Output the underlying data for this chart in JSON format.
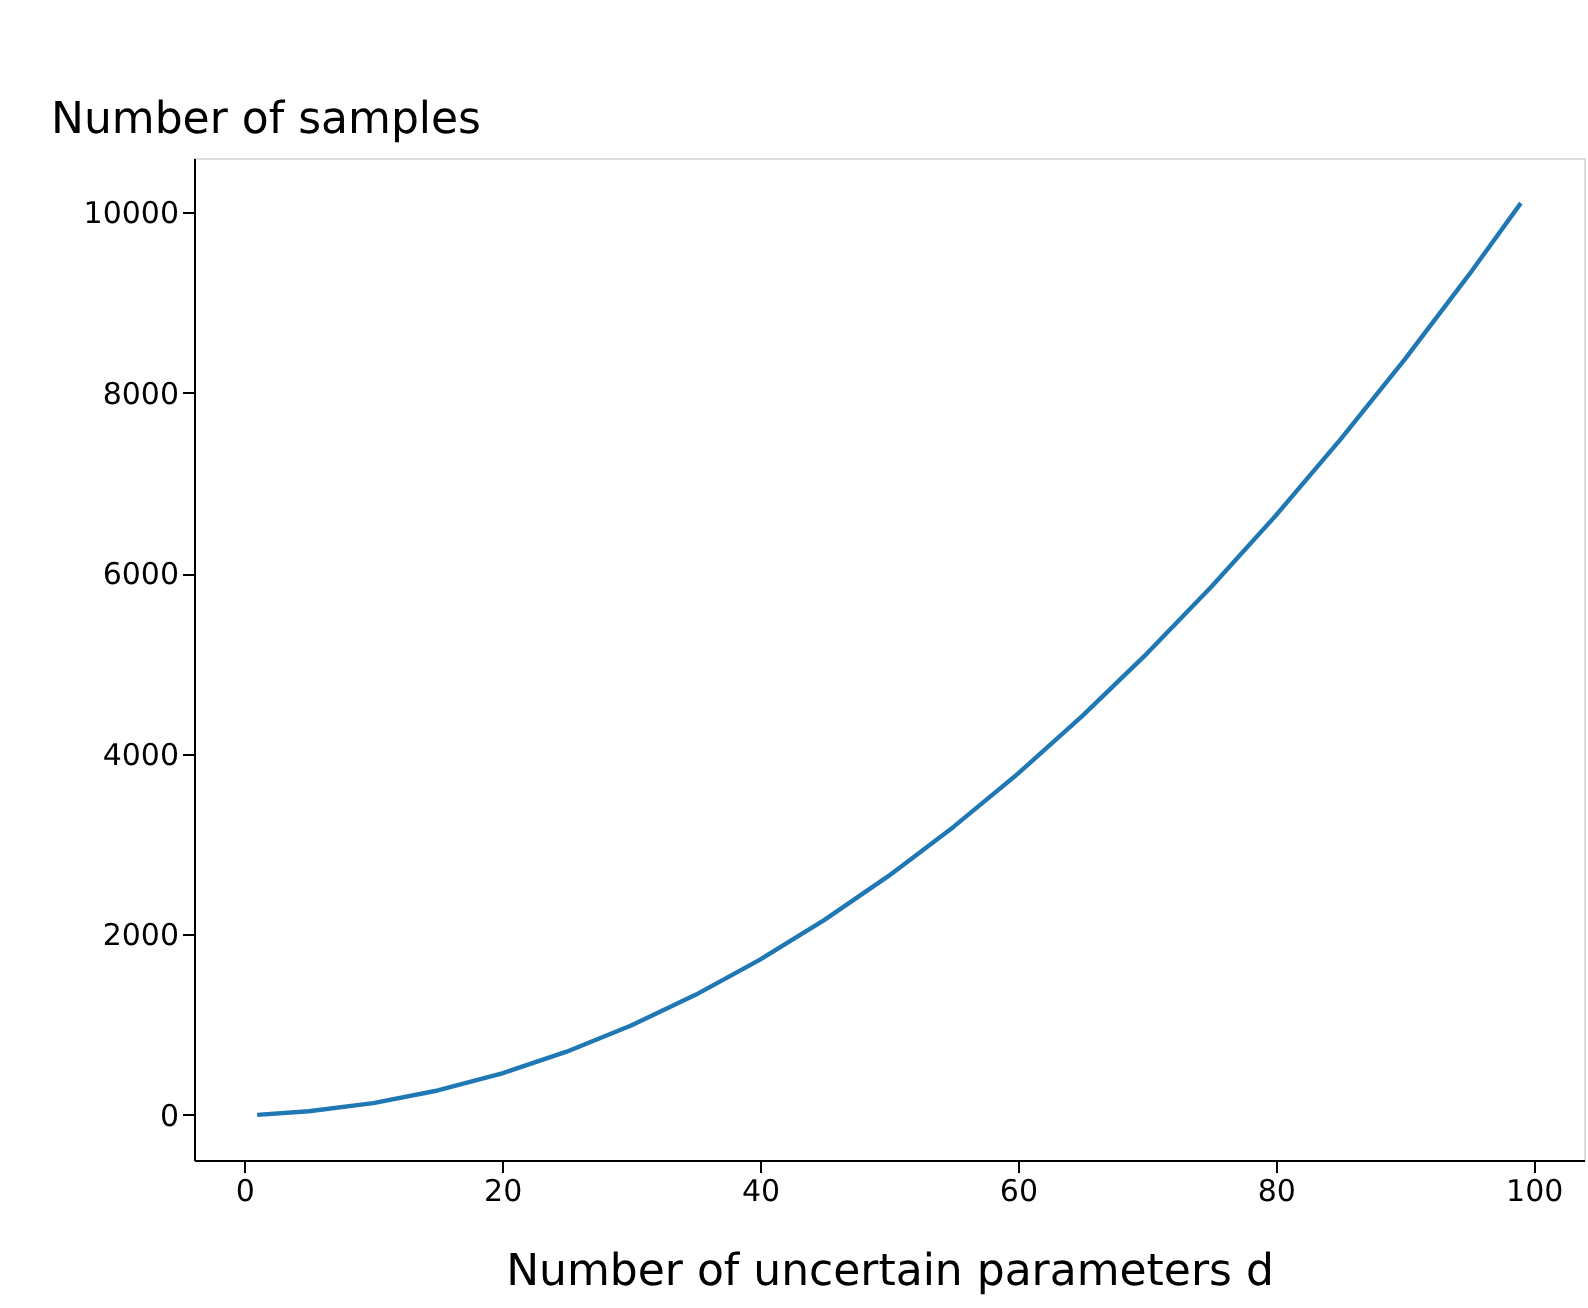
{
  "chart_data": {
    "type": "line",
    "xlabel": "Number of uncertain parameters d",
    "ylabel": "Number of samples",
    "x": [
      1,
      5,
      10,
      15,
      20,
      25,
      30,
      35,
      40,
      45,
      50,
      55,
      60,
      65,
      70,
      75,
      80,
      85,
      90,
      95,
      99
    ],
    "series": [
      {
        "color": "#1f77b4",
        "values": [
          0,
          40,
          130,
          270,
          460,
          700,
          990,
          1330,
          1720,
          2160,
          2650,
          3190,
          3780,
          4420,
          5110,
          5850,
          6640,
          7480,
          8370,
          9310,
          10100
        ]
      }
    ],
    "xlim": [
      -3.9,
      103.9
    ],
    "ylim": [
      -500,
      10600
    ],
    "xticks": [
      0,
      20,
      40,
      60,
      80,
      100
    ],
    "yticks": [
      0,
      2000,
      4000,
      6000,
      8000,
      10000
    ],
    "grid": false,
    "legend": false,
    "marker": "none",
    "line_style": "solid"
  }
}
